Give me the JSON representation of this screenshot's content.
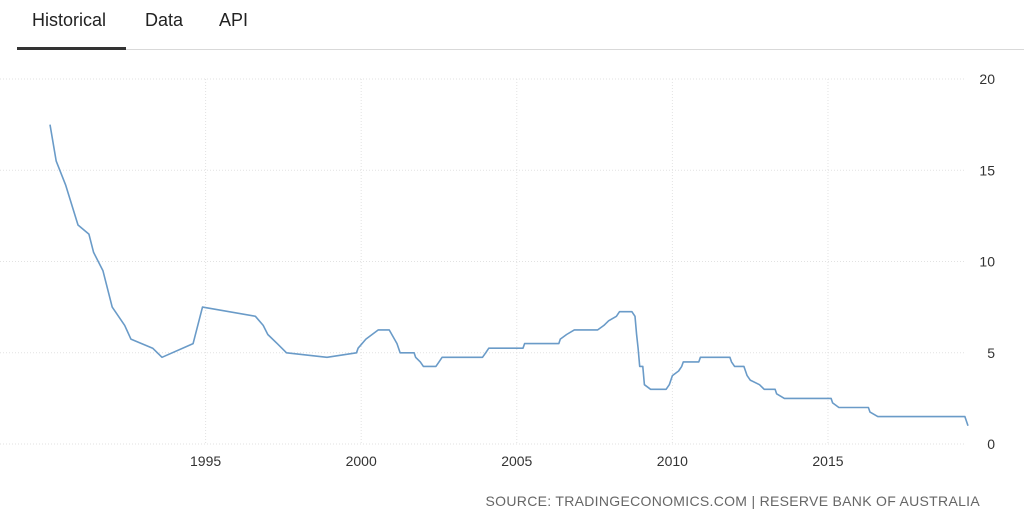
{
  "tabs": [
    {
      "label": "Historical",
      "active": true
    },
    {
      "label": "Data",
      "active": false
    },
    {
      "label": "API",
      "active": false
    }
  ],
  "source": "SOURCE: TRADINGECONOMICS.COM | RESERVE BANK OF AUSTRALIA",
  "colors": {
    "line": "#6a9bc8",
    "grid": "#e2e2e2",
    "text": "#333333"
  },
  "chart_data": {
    "type": "line",
    "title": "",
    "xlabel": "",
    "ylabel": "",
    "xlim": [
      1990.0,
      2019.5
    ],
    "ylim": [
      0,
      20
    ],
    "x_ticks": [
      1995,
      2000,
      2005,
      2010,
      2015
    ],
    "y_ticks": [
      0,
      5,
      10,
      15,
      20
    ],
    "y_axis_position": "right",
    "grid": true,
    "series": [
      {
        "name": "",
        "points": [
          [
            1990.0,
            17.5
          ],
          [
            1990.2,
            15.5
          ],
          [
            1990.5,
            14.2
          ],
          [
            1990.9,
            12.0
          ],
          [
            1991.25,
            11.5
          ],
          [
            1991.4,
            10.5
          ],
          [
            1991.7,
            9.5
          ],
          [
            1992.0,
            7.5
          ],
          [
            1992.4,
            6.5
          ],
          [
            1992.6,
            5.75
          ],
          [
            1993.3,
            5.25
          ],
          [
            1993.6,
            4.75
          ],
          [
            1994.6,
            5.5
          ],
          [
            1994.9,
            7.5
          ],
          [
            1996.6,
            7.0
          ],
          [
            1996.85,
            6.5
          ],
          [
            1997.0,
            6.0
          ],
          [
            1997.3,
            5.5
          ],
          [
            1997.6,
            5.0
          ],
          [
            1998.9,
            4.75
          ],
          [
            1999.85,
            5.0
          ],
          [
            1999.9,
            5.25
          ],
          [
            2000.15,
            5.75
          ],
          [
            2000.35,
            6.0
          ],
          [
            2000.55,
            6.25
          ],
          [
            2000.9,
            6.25
          ],
          [
            2001.15,
            5.5
          ],
          [
            2001.25,
            5.0
          ],
          [
            2001.7,
            5.0
          ],
          [
            2001.75,
            4.75
          ],
          [
            2001.9,
            4.5
          ],
          [
            2002.0,
            4.25
          ],
          [
            2002.4,
            4.25
          ],
          [
            2002.5,
            4.5
          ],
          [
            2002.6,
            4.75
          ],
          [
            2003.9,
            4.75
          ],
          [
            2004.0,
            5.0
          ],
          [
            2004.1,
            5.25
          ],
          [
            2005.2,
            5.25
          ],
          [
            2005.25,
            5.5
          ],
          [
            2006.35,
            5.5
          ],
          [
            2006.4,
            5.75
          ],
          [
            2006.6,
            6.0
          ],
          [
            2006.85,
            6.25
          ],
          [
            2007.6,
            6.25
          ],
          [
            2007.8,
            6.5
          ],
          [
            2007.95,
            6.75
          ],
          [
            2008.2,
            7.0
          ],
          [
            2008.3,
            7.25
          ],
          [
            2008.7,
            7.25
          ],
          [
            2008.8,
            7.0
          ],
          [
            2008.85,
            6.0
          ],
          [
            2008.9,
            5.25
          ],
          [
            2008.95,
            4.25
          ],
          [
            2009.05,
            4.25
          ],
          [
            2009.1,
            3.25
          ],
          [
            2009.3,
            3.0
          ],
          [
            2009.8,
            3.0
          ],
          [
            2009.9,
            3.25
          ],
          [
            2010.0,
            3.75
          ],
          [
            2010.2,
            4.0
          ],
          [
            2010.3,
            4.25
          ],
          [
            2010.35,
            4.5
          ],
          [
            2010.85,
            4.5
          ],
          [
            2010.9,
            4.75
          ],
          [
            2011.85,
            4.75
          ],
          [
            2011.9,
            4.5
          ],
          [
            2012.0,
            4.25
          ],
          [
            2012.3,
            4.25
          ],
          [
            2012.4,
            3.75
          ],
          [
            2012.5,
            3.5
          ],
          [
            2012.8,
            3.25
          ],
          [
            2012.95,
            3.0
          ],
          [
            2013.3,
            3.0
          ],
          [
            2013.35,
            2.75
          ],
          [
            2013.6,
            2.5
          ],
          [
            2015.1,
            2.5
          ],
          [
            2015.15,
            2.25
          ],
          [
            2015.35,
            2.0
          ],
          [
            2016.3,
            2.0
          ],
          [
            2016.35,
            1.75
          ],
          [
            2016.6,
            1.5
          ],
          [
            2019.4,
            1.5
          ],
          [
            2019.5,
            1.0
          ]
        ]
      }
    ]
  }
}
